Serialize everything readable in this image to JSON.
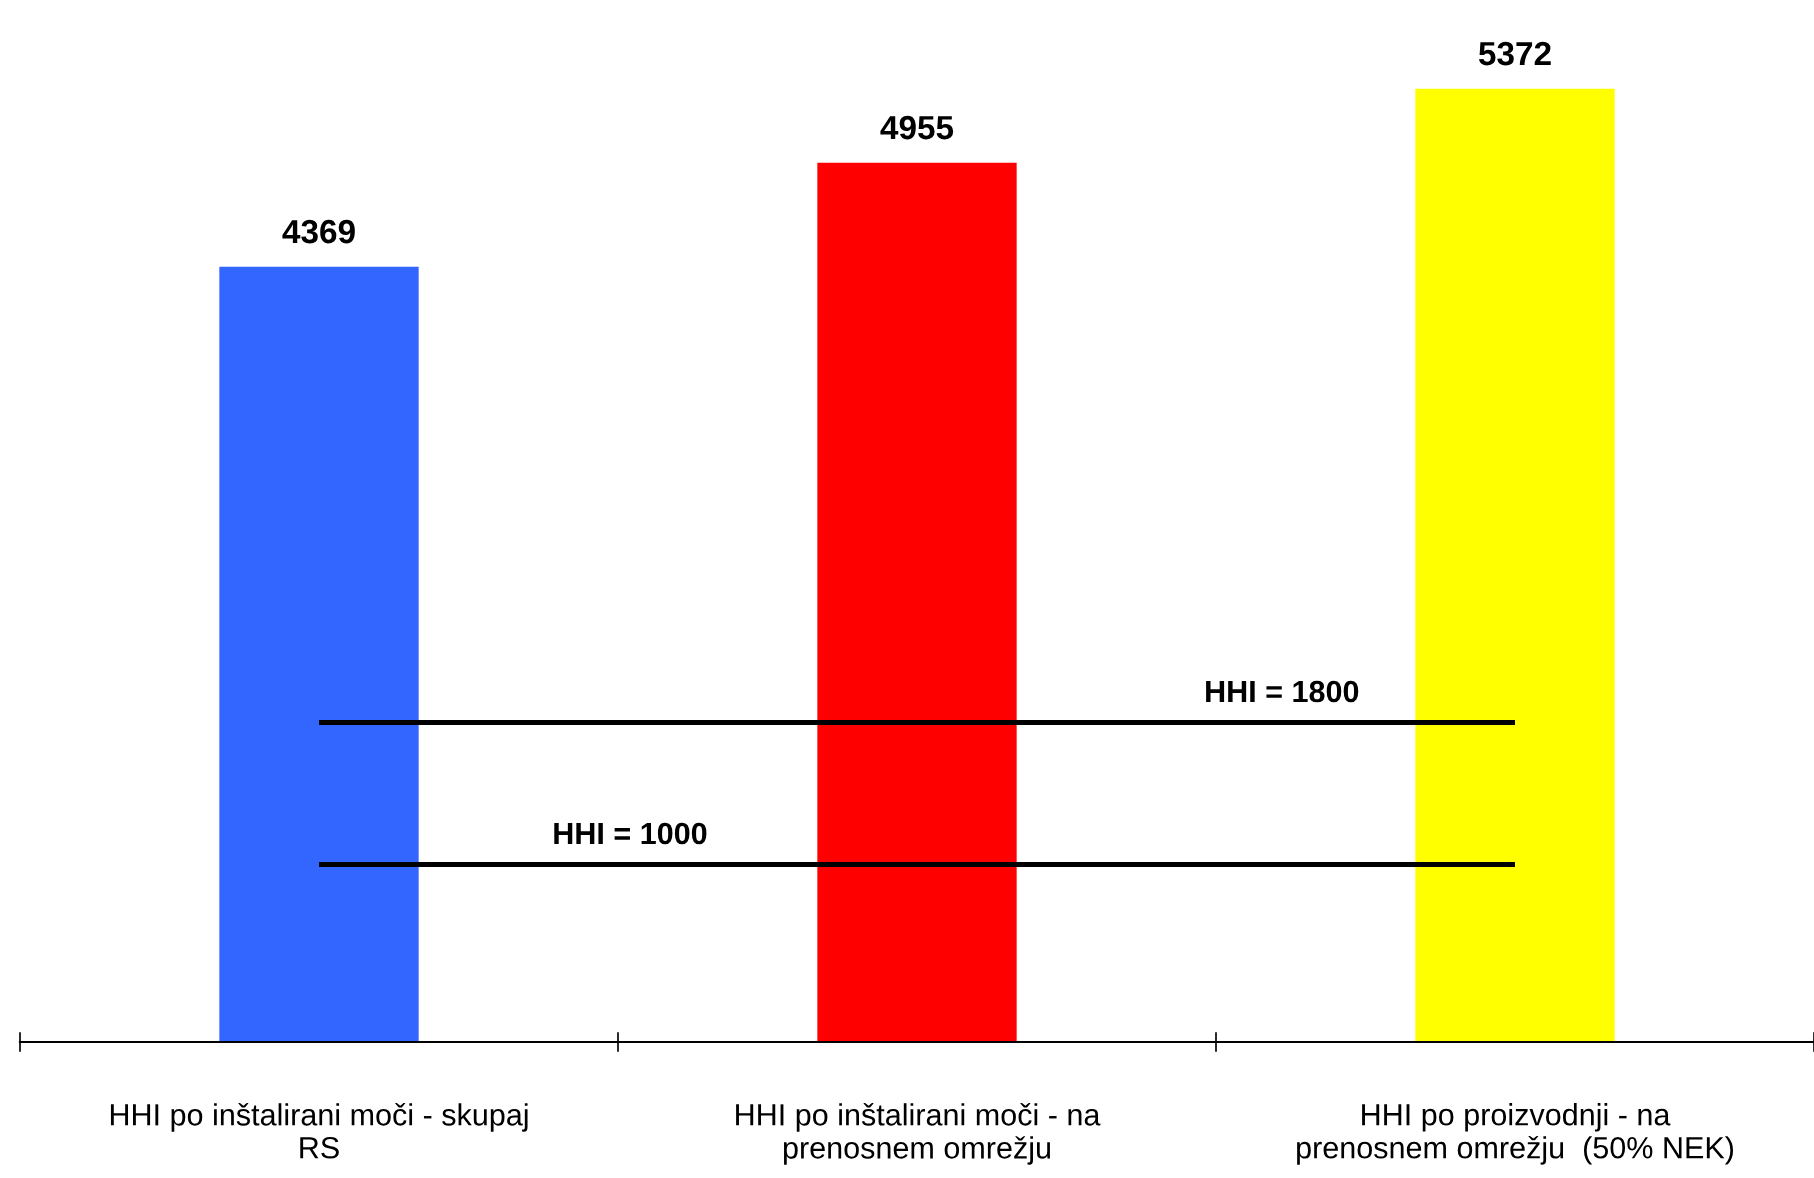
{
  "chart_data": {
    "type": "bar",
    "categories": [
      "HHI po inštalirani moči - skupaj\nRS",
      "HHI po inštalirani moči - na\nprenosnem omrežju",
      "HHI po proizvodnji - na\nprenosnem omrežju  (50% NEK)"
    ],
    "values": [
      4369,
      4955,
      5372
    ],
    "colors": [
      "#3366ff",
      "#ff0000",
      "#ffff00"
    ],
    "data_labels": true,
    "tick_labels": "x",
    "grid": false,
    "legend": false,
    "ref_lines": [
      {
        "axis": "y",
        "value": 1800,
        "label": "HHI = 1800",
        "color": "#000000"
      },
      {
        "axis": "y",
        "value": 1000,
        "label": "HHI = 1000",
        "color": "#000000"
      }
    ]
  }
}
